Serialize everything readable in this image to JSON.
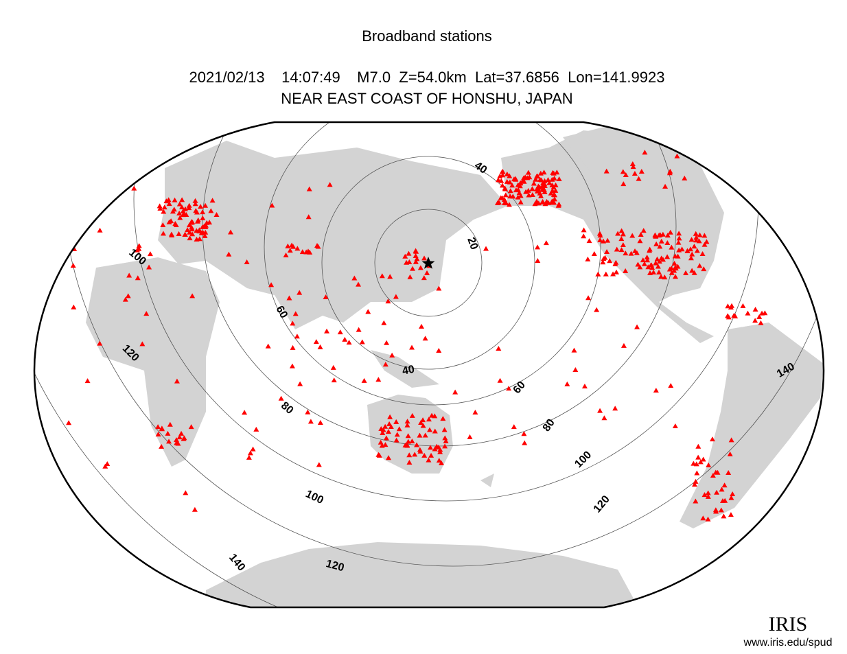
{
  "header": {
    "title": "Broadband stations",
    "event": "2021/02/13    14:07:49    M7.0  Z=54.0km  Lat=37.6856  Lon=141.9923",
    "region": "NEAR EAST COAST OF HONSHU, JAPAN"
  },
  "map": {
    "contour_labels": [
      "40",
      "20",
      "100",
      "60",
      "120",
      "40",
      "60",
      "80",
      "80",
      "140",
      "100",
      "100",
      "120",
      "140",
      "120"
    ]
  },
  "footer": {
    "logo": "IRIS",
    "url": "www.iris.edu/spud"
  }
}
